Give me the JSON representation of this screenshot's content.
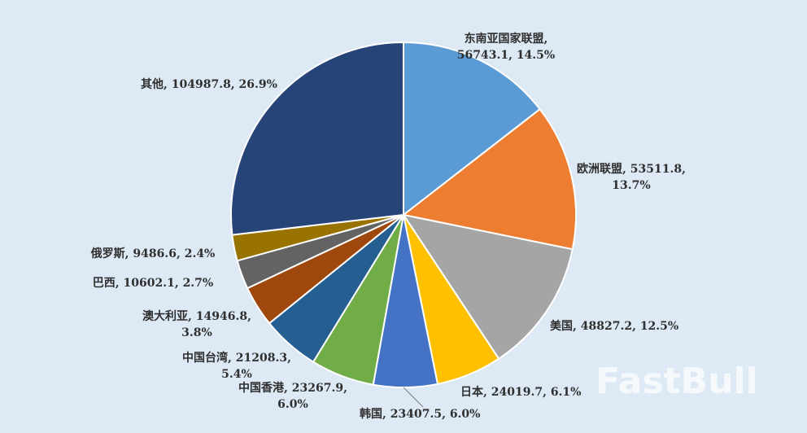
{
  "chart_data": {
    "type": "pie",
    "slices": [
      {
        "name": "东南亚国家联盟",
        "value": 56743.1,
        "percent": 14.5,
        "color": "#5b9bd5",
        "label_lines": [
          "东南亚国家联盟,",
          "56743.1, 14.5%"
        ]
      },
      {
        "name": "欧洲联盟",
        "value": 53511.8,
        "percent": 13.7,
        "color": "#ed7d31",
        "label_lines": [
          "欧洲联盟, 53511.8,",
          "13.7%"
        ]
      },
      {
        "name": "美国",
        "value": 48827.2,
        "percent": 12.5,
        "color": "#a5a5a5",
        "label_lines": [
          "美国, 48827.2, 12.5%"
        ]
      },
      {
        "name": "日本",
        "value": 24019.7,
        "percent": 6.1,
        "color": "#ffc000",
        "label_lines": [
          "日本, 24019.7, 6.1%"
        ]
      },
      {
        "name": "韩国",
        "value": 23407.5,
        "percent": 6.0,
        "color": "#4472c4",
        "label_lines": [
          "韩国, 23407.5, 6.0%"
        ]
      },
      {
        "name": "中国香港",
        "value": 23267.9,
        "percent": 6.0,
        "color": "#70ad47",
        "label_lines": [
          "中国香港, 23267.9,",
          "6.0%"
        ]
      },
      {
        "name": "中国台湾",
        "value": 21208.3,
        "percent": 5.4,
        "color": "#255e91",
        "label_lines": [
          "中国台湾, 21208.3,",
          "5.4%"
        ]
      },
      {
        "name": "澳大利亚",
        "value": 14946.8,
        "percent": 3.8,
        "color": "#9e480e",
        "label_lines": [
          "澳大利亚, 14946.8,",
          "3.8%"
        ]
      },
      {
        "name": "巴西",
        "value": 10602.1,
        "percent": 2.7,
        "color": "#636363",
        "label_lines": [
          "巴西, 10602.1, 2.7%"
        ]
      },
      {
        "name": "俄罗斯",
        "value": 9486.6,
        "percent": 2.4,
        "color": "#997300",
        "label_lines": [
          "俄罗斯, 9486.6, 2.4%"
        ]
      },
      {
        "name": "其他",
        "value": 104987.8,
        "percent": 26.9,
        "color": "#264478",
        "label_lines": [
          "其他, 104987.8, 26.9%"
        ]
      }
    ]
  },
  "watermark": {
    "text": "FastBull"
  }
}
